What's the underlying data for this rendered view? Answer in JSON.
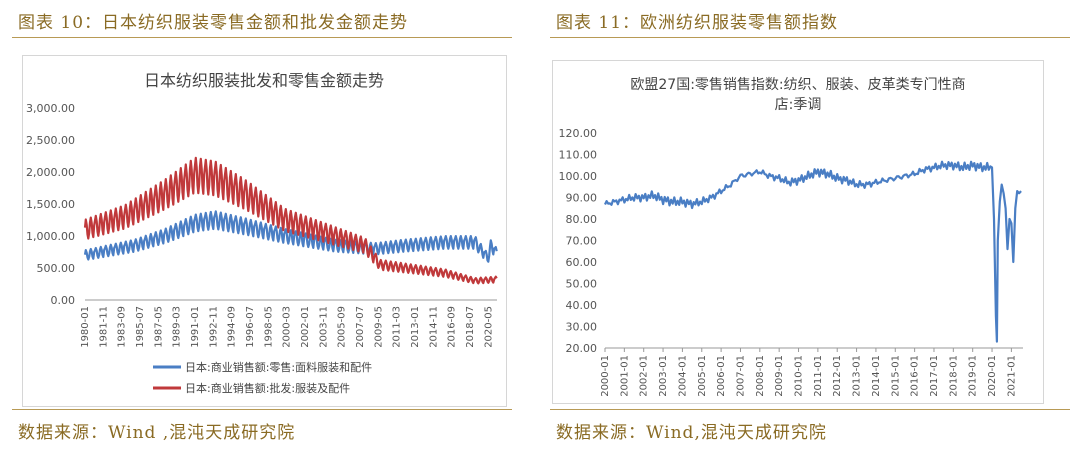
{
  "left_figure": {
    "caption": "图表 10：日本纺织服装零售金额和批发金额走势",
    "source": "数据来源：Wind ,混沌天成研究院"
  },
  "right_figure": {
    "caption": "图表 11：欧洲纺织服装零售额指数",
    "source": "数据来源：Wind,混沌天成研究院"
  },
  "colors": {
    "caption": "#8a6b24",
    "rule": "#b89a55",
    "blue": "#4a7ec4",
    "red": "#c0393b",
    "axis": "#555555"
  },
  "chart_data": [
    {
      "type": "line",
      "title": "日本纺织服装批发和零售金额走势",
      "ylim": [
        0,
        3000
      ],
      "yticks": [
        "0.00",
        "500.00",
        "1,000.00",
        "1,500.00",
        "2,000.00",
        "2,500.00",
        "3,000.00"
      ],
      "xticks": [
        "1980-01",
        "1981-11",
        "1983-09",
        "1985-07",
        "1987-05",
        "1989-03",
        "1991-01",
        "1992-11",
        "1994-09",
        "1996-07",
        "1998-05",
        "2000-03",
        "2002-01",
        "2003-11",
        "2005-09",
        "2007-07",
        "2009-05",
        "2011-03",
        "2013-01",
        "2014-11",
        "2016-09",
        "2018-07",
        "2020-05"
      ],
      "legend": "bottom",
      "series": [
        {
          "name": "日本:商业销售额:零售:面料服装和配件",
          "color": "#4a7ec4",
          "trend": [
            [
              1980,
              700
            ],
            [
              1985,
              850
            ],
            [
              1988,
              1000
            ],
            [
              1991,
              1200
            ],
            [
              1993,
              1250
            ],
            [
              1996,
              1150
            ],
            [
              2000,
              1000
            ],
            [
              2005,
              850
            ],
            [
              2009,
              800
            ],
            [
              2012,
              850
            ],
            [
              2016,
              900
            ],
            [
              2019,
              900
            ],
            [
              2020.3,
              650
            ],
            [
              2020.6,
              850
            ],
            [
              2021.2,
              720
            ]
          ]
        },
        {
          "name": "日本:商业销售额:批发:服装及配件",
          "color": "#c0393b",
          "trend": [
            [
              1980,
              1100
            ],
            [
              1984,
              1300
            ],
            [
              1988,
              1650
            ],
            [
              1991,
              1950
            ],
            [
              1993,
              1900
            ],
            [
              1996,
              1650
            ],
            [
              2000,
              1250
            ],
            [
              2005,
              1000
            ],
            [
              2008,
              850
            ],
            [
              2009.5,
              550
            ],
            [
              2012,
              500
            ],
            [
              2016,
              420
            ],
            [
              2019,
              300
            ],
            [
              2021.2,
              320
            ]
          ]
        }
      ]
    },
    {
      "type": "line",
      "title": "欧盟27国:零售销售指数:纺织、服装、皮革类专门性商店:季调",
      "ylim": [
        20,
        120
      ],
      "yticks": [
        "20.00",
        "30.00",
        "40.00",
        "50.00",
        "60.00",
        "70.00",
        "80.00",
        "90.00",
        "100.00",
        "110.00",
        "120.00"
      ],
      "xticks": [
        "2000-01",
        "2001-01",
        "2002-01",
        "2003-01",
        "2004-01",
        "2005-01",
        "2006-01",
        "2007-01",
        "2008-01",
        "2009-01",
        "2010-01",
        "2011-01",
        "2012-01",
        "2013-01",
        "2014-01",
        "2015-01",
        "2016-01",
        "2017-01",
        "2018-01",
        "2019-01",
        "2020-01",
        "2021-01"
      ],
      "series": [
        {
          "color": "#4a7ec4",
          "x": [
            2000.0,
            2000.5,
            2001.0,
            2001.5,
            2002.0,
            2002.5,
            2003.0,
            2003.5,
            2004.0,
            2004.5,
            2005.0,
            2005.5,
            2006.0,
            2006.5,
            2007.0,
            2007.5,
            2008.0,
            2008.5,
            2009.0,
            2009.5,
            2010.0,
            2010.5,
            2011.0,
            2011.5,
            2012.0,
            2012.5,
            2013.0,
            2013.5,
            2014.0,
            2014.5,
            2015.0,
            2015.5,
            2016.0,
            2016.5,
            2017.0,
            2017.5,
            2018.0,
            2018.5,
            2019.0,
            2019.5,
            2020.0,
            2020.1,
            2020.2,
            2020.25,
            2020.3,
            2020.4,
            2020.5,
            2020.6,
            2020.7,
            2020.8,
            2020.9,
            2021.0,
            2021.1,
            2021.2,
            2021.3,
            2021.4,
            2021.5
          ],
          "values": [
            87,
            88,
            89,
            90,
            90,
            91,
            89,
            88,
            88,
            87,
            88,
            90,
            93,
            96,
            100,
            101,
            102,
            100,
            99,
            97,
            98,
            100,
            102,
            101,
            99,
            98,
            96,
            96,
            97,
            98,
            99,
            100,
            101,
            103,
            104,
            105,
            105,
            104,
            105,
            104,
            104,
            80,
            35,
            23,
            70,
            88,
            96,
            92,
            85,
            66,
            80,
            78,
            60,
            85,
            93,
            92,
            93
          ]
        }
      ]
    }
  ]
}
